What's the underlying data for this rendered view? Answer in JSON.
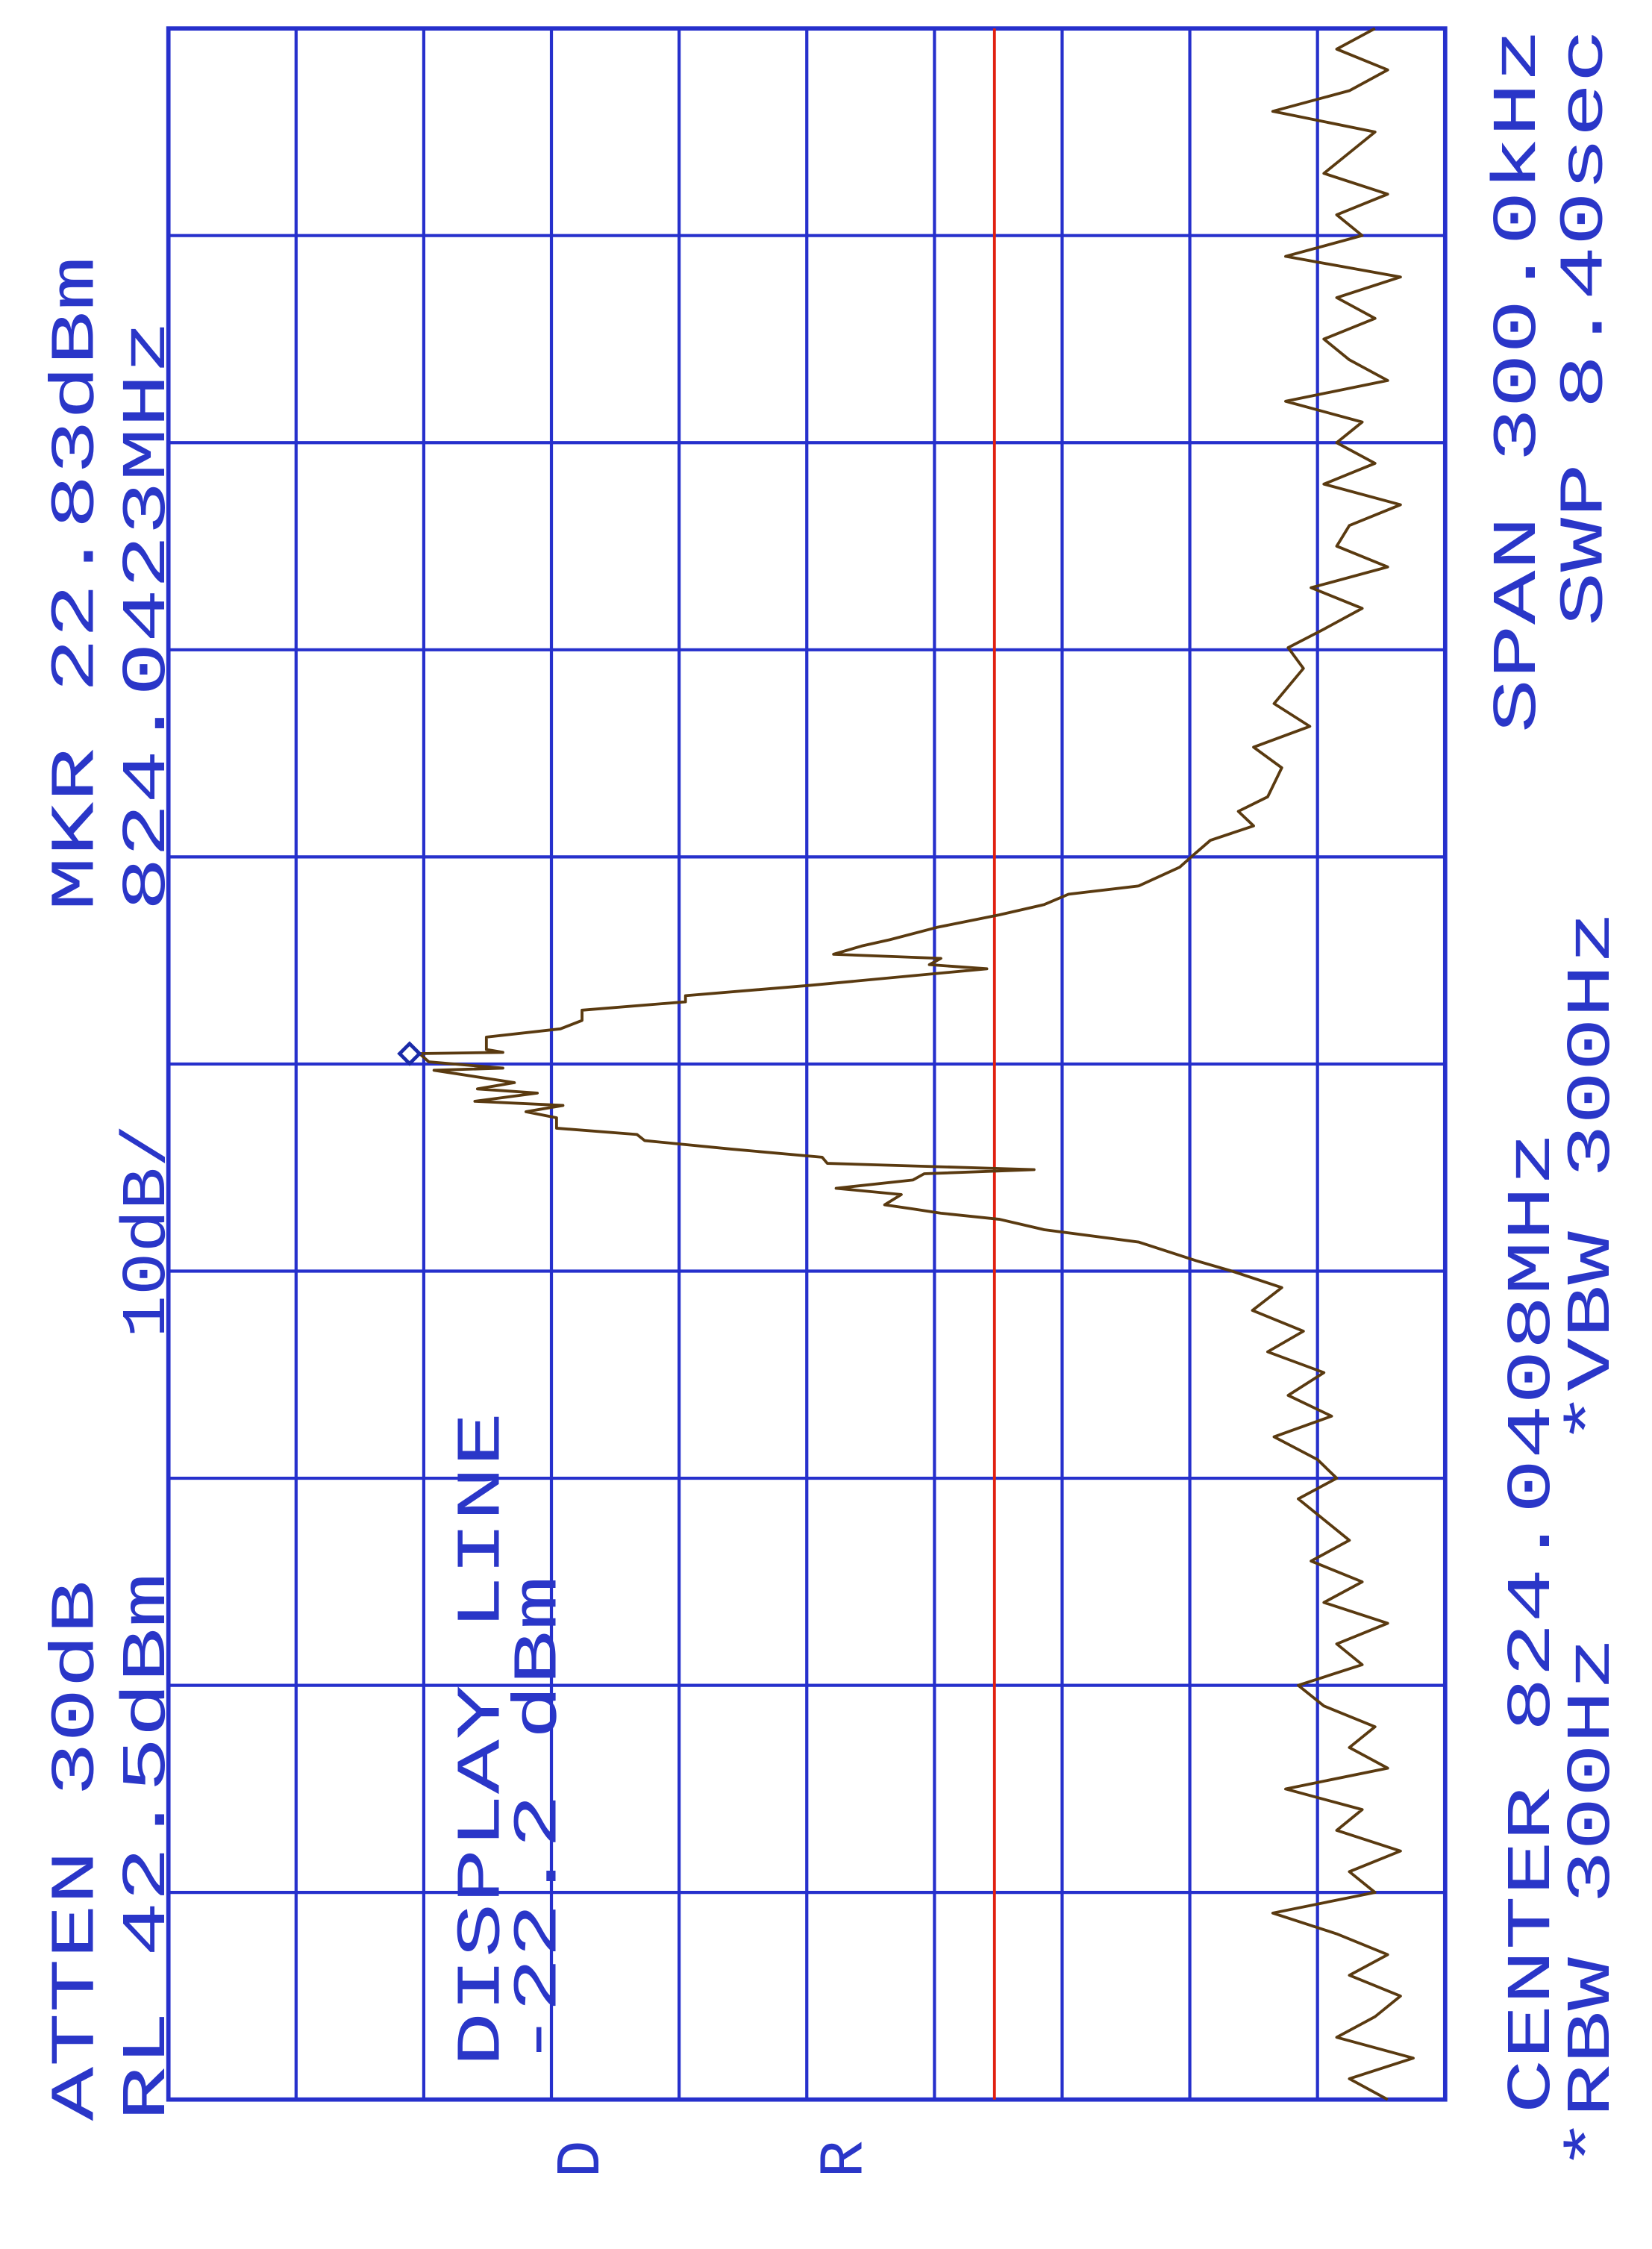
{
  "colors": {
    "grid": "#2630cc",
    "text": "#2a36c8",
    "trace": "#5a3a10",
    "display_line": "#e02010",
    "marker": "#1a2aa8"
  },
  "header": {
    "atten": "ATTEN 30dB",
    "ref_level": "RL 42.5dBm",
    "scale": "10dB/",
    "marker_level": "MKR 22.83dBm",
    "marker_freq": "824.0423MHz"
  },
  "display_line": {
    "label": "DISPLAY LINE",
    "value_text": "-22.2 dBm"
  },
  "footer": {
    "center": "CENTER 824.0408MHz",
    "span": "SPAN 300.0kHz",
    "rbw": "*RBW 300Hz",
    "vbw": "*VBW 300Hz",
    "sweep": "SWP 8.40sec"
  },
  "side_labels": {
    "d": "D",
    "r": "R"
  },
  "chart_data": {
    "type": "line",
    "title": "",
    "xlabel": "",
    "ylabel": "",
    "orientation": "rotated-90 (frequency runs bottom-to-top, amplitude decreases left-to-right)",
    "grid": true,
    "x_unit": "MHz",
    "y_unit": "dBm",
    "xlim": [
      823.8908,
      824.1908
    ],
    "ylim": [
      -57.5,
      42.5
    ],
    "x_divisions": 10,
    "y_divisions": 10,
    "reference_level_dbm": 42.5,
    "scale_db_per_div": 10,
    "center_mhz": 824.0408,
    "span_khz": 300.0,
    "display_line_dbm": -22.2,
    "marker": {
      "freq_mhz": 824.0423,
      "level_dbm": 22.83
    },
    "trace": [
      [
        823.8908,
        -53
      ],
      [
        823.8938,
        -50
      ],
      [
        823.8968,
        -55
      ],
      [
        823.8998,
        -49
      ],
      [
        823.9028,
        -52
      ],
      [
        823.9058,
        -54
      ],
      [
        823.9088,
        -50
      ],
      [
        823.9118,
        -53
      ],
      [
        823.9148,
        -49
      ],
      [
        823.9178,
        -44
      ],
      [
        823.9208,
        -52
      ],
      [
        823.9238,
        -50
      ],
      [
        823.9268,
        -54
      ],
      [
        823.9298,
        -49
      ],
      [
        823.9328,
        -51
      ],
      [
        823.9358,
        -45
      ],
      [
        823.9388,
        -53
      ],
      [
        823.9418,
        -50
      ],
      [
        823.9448,
        -52
      ],
      [
        823.9478,
        -48
      ],
      [
        823.9508,
        -46
      ],
      [
        823.9538,
        -51
      ],
      [
        823.9568,
        -49
      ],
      [
        823.9598,
        -53
      ],
      [
        823.9628,
        -48
      ],
      [
        823.9658,
        -51
      ],
      [
        823.9688,
        -47
      ],
      [
        823.9718,
        -50
      ],
      [
        823.9748,
        -48
      ],
      [
        823.9778,
        -46
      ],
      [
        823.9808,
        -49
      ],
      [
        823.9835,
        -47.5
      ],
      [
        823.9868,
        -44.1
      ],
      [
        823.9898,
        -48.6
      ],
      [
        823.9928,
        -45.2
      ],
      [
        823.9961,
        -48.0
      ],
      [
        823.9991,
        -43.6
      ],
      [
        824.0021,
        -46.4
      ],
      [
        824.0051,
        -42.4
      ],
      [
        824.0084,
        -44.7
      ],
      [
        824.0108,
        -40.8
      ],
      [
        824.0123,
        -38.0
      ],
      [
        824.015,
        -33.5
      ],
      [
        824.0168,
        -26.1
      ],
      [
        824.0183,
        -22.6
      ],
      [
        824.0192,
        -18.0
      ],
      [
        824.0198,
        -15.8
      ],
      [
        824.0204,
        -13.6
      ],
      [
        824.0219,
        -14.9
      ],
      [
        824.0228,
        -9.8
      ],
      [
        824.024,
        -15.8
      ],
      [
        824.0249,
        -16.7
      ],
      [
        824.0255,
        -25.3
      ],
      [
        824.0264,
        -9.1
      ],
      [
        824.0273,
        -8.7
      ],
      [
        824.0285,
        -1.5
      ],
      [
        824.0297,
        5.2
      ],
      [
        824.0306,
        5.8
      ],
      [
        824.0315,
        12.1
      ],
      [
        824.033,
        12.1
      ],
      [
        824.0339,
        14.5
      ],
      [
        824.0348,
        11.6
      ],
      [
        824.0354,
        18.5
      ],
      [
        824.0366,
        13.6
      ],
      [
        824.0372,
        18.3
      ],
      [
        824.0381,
        15.4
      ],
      [
        824.0399,
        21.7
      ],
      [
        824.0402,
        16.3
      ],
      [
        824.0411,
        22.1
      ],
      [
        824.0423,
        22.83
      ],
      [
        824.0425,
        16.3
      ],
      [
        824.0429,
        17.6
      ],
      [
        824.0447,
        17.6
      ],
      [
        824.0459,
        11.8
      ],
      [
        824.0471,
        10.1
      ],
      [
        824.0486,
        10.1
      ],
      [
        824.0498,
        2.0
      ],
      [
        824.0507,
        2.0
      ],
      [
        824.0522,
        -7.8
      ],
      [
        824.0546,
        -21.6
      ],
      [
        824.0552,
        -17.1
      ],
      [
        824.0561,
        -18.0
      ],
      [
        824.0567,
        -9.6
      ],
      [
        824.0579,
        -11.8
      ],
      [
        824.0588,
        -14.0
      ],
      [
        824.0606,
        -17.7
      ],
      [
        824.0624,
        -22.6
      ],
      [
        824.0639,
        -26.1
      ],
      [
        824.0654,
        -28.0
      ],
      [
        824.0666,
        -33.5
      ],
      [
        824.0693,
        -36.7
      ],
      [
        824.0711,
        -37.8
      ],
      [
        824.0732,
        -39.1
      ],
      [
        824.0753,
        -42.5
      ],
      [
        824.0774,
        -41.3
      ],
      [
        824.0795,
        -43.6
      ],
      [
        824.0837,
        -44.7
      ],
      [
        824.0867,
        -42.5
      ],
      [
        824.0897,
        -46.9
      ],
      [
        824.093,
        -44.1
      ],
      [
        824.0981,
        -46.4
      ],
      [
        824.1011,
        -45.2
      ],
      [
        824.1038,
        -48
      ],
      [
        824.1068,
        -51
      ],
      [
        824.1098,
        -47
      ],
      [
        824.1128,
        -53
      ],
      [
        824.1158,
        -49
      ],
      [
        824.1188,
        -50
      ],
      [
        824.1218,
        -54
      ],
      [
        824.1248,
        -48
      ],
      [
        824.1278,
        -52
      ],
      [
        824.1308,
        -49
      ],
      [
        824.1338,
        -51
      ],
      [
        824.1368,
        -45
      ],
      [
        824.1398,
        -53
      ],
      [
        824.1428,
        -50
      ],
      [
        824.1458,
        -48
      ],
      [
        824.1488,
        -52
      ],
      [
        824.1518,
        -49
      ],
      [
        824.1548,
        -54
      ],
      [
        824.1578,
        -45
      ],
      [
        824.1608,
        -51
      ],
      [
        824.1638,
        -49
      ],
      [
        824.1668,
        -53
      ],
      [
        824.1698,
        -48
      ],
      [
        824.1728,
        -50
      ],
      [
        824.1758,
        -52
      ],
      [
        824.1788,
        -44
      ],
      [
        824.1818,
        -50
      ],
      [
        824.1848,
        -53
      ],
      [
        824.1878,
        -49
      ],
      [
        824.1908,
        -52
      ]
    ]
  }
}
